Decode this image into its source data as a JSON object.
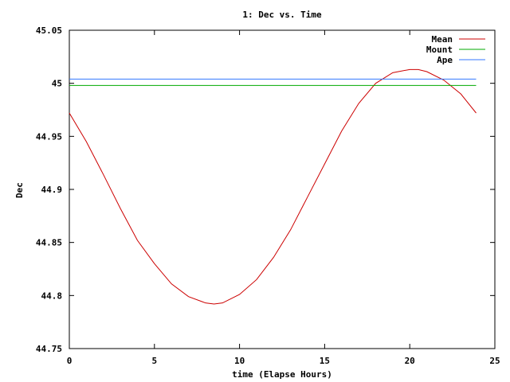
{
  "chart_data": {
    "type": "line",
    "title": "1: Dec vs. Time",
    "xlabel": "time (Elapse Hours)",
    "ylabel": "Dec",
    "xlim": [
      0,
      25
    ],
    "ylim": [
      44.75,
      45.05
    ],
    "xticks": [
      0,
      5,
      10,
      15,
      20,
      25
    ],
    "xtick_labels": [
      "0",
      "5",
      "10",
      "15",
      "20",
      "25"
    ],
    "yticks": [
      44.75,
      44.8,
      44.85,
      44.9,
      44.95,
      45,
      45.05
    ],
    "ytick_labels": [
      "44.75",
      "44.8",
      "44.85",
      "44.9",
      "44.95",
      "45",
      "45.05"
    ],
    "grid": false,
    "legend_position": "top-right",
    "series": [
      {
        "name": "Mean",
        "color": "#cc0000",
        "x": [
          0,
          1,
          2,
          3,
          4,
          5,
          6,
          7,
          8,
          8.5,
          9,
          10,
          11,
          12,
          13,
          14,
          15,
          16,
          17,
          18,
          19,
          20,
          20.5,
          21,
          22,
          23,
          23.9
        ],
        "y": [
          44.972,
          44.945,
          44.914,
          44.882,
          44.852,
          44.83,
          44.811,
          44.799,
          44.793,
          44.792,
          44.793,
          44.801,
          44.815,
          44.836,
          44.862,
          44.893,
          44.924,
          44.955,
          44.981,
          45.0,
          45.01,
          45.013,
          45.013,
          45.011,
          45.003,
          44.99,
          44.972
        ]
      },
      {
        "name": "Mount",
        "color": "#00aa00",
        "x": [
          0,
          23.9
        ],
        "y": [
          44.998,
          44.998
        ]
      },
      {
        "name": "Ape",
        "color": "#3377ff",
        "x": [
          0,
          23.9
        ],
        "y": [
          45.004,
          45.004
        ]
      }
    ]
  }
}
